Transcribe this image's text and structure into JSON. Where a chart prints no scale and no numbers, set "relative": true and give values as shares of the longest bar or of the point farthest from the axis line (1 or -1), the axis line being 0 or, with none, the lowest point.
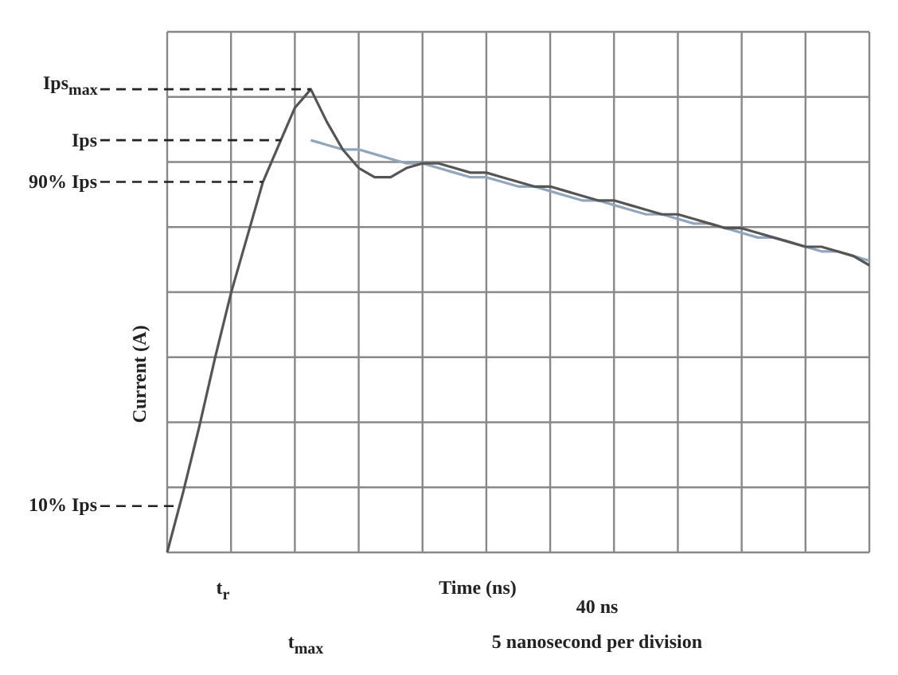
{
  "chart_data": {
    "type": "line",
    "relative": true,
    "grid": true,
    "legend": false,
    "marker": "none",
    "line_style": "solid",
    "ylabel": "Current (A)",
    "categories": [
      null,
      null,
      null,
      null,
      null,
      null,
      null,
      null,
      null,
      null,
      null,
      null,
      null,
      null,
      null,
      null,
      null,
      null,
      null,
      null,
      null,
      null,
      null,
      null,
      null,
      null,
      null,
      null,
      null,
      null,
      null,
      null,
      null,
      null,
      null,
      null,
      null,
      null,
      null,
      null,
      null,
      null,
      null,
      null,
      null
    ],
    "series": [
      {
        "color": "#555555",
        "values": [
          0,
          0.13,
          0.27,
          0.42,
          0.56,
          0.68,
          0.8,
          0.88,
          0.96,
          1.0,
          0.93,
          0.87,
          0.83,
          0.81,
          0.81,
          0.83,
          0.84,
          0.84,
          0.83,
          0.82,
          0.82,
          0.81,
          0.8,
          0.79,
          0.79,
          0.78,
          0.77,
          0.76,
          0.76,
          0.75,
          0.74,
          0.73,
          0.73,
          0.72,
          0.71,
          0.7,
          0.7,
          0.69,
          0.68,
          0.67,
          0.66,
          0.66,
          0.65,
          0.64,
          0.62
        ]
      },
      {
        "color": "#8fa6bd",
        "values": [
          null,
          null,
          null,
          null,
          null,
          null,
          null,
          null,
          null,
          0.89,
          0.88,
          0.87,
          0.87,
          0.86,
          0.85,
          0.84,
          0.84,
          0.83,
          0.82,
          0.81,
          0.81,
          0.8,
          0.79,
          0.79,
          0.78,
          0.77,
          0.76,
          0.76,
          0.75,
          0.74,
          0.73,
          0.73,
          0.72,
          0.71,
          0.71,
          0.7,
          0.69,
          0.68,
          0.68,
          0.67,
          0.66,
          0.65,
          0.65,
          0.64,
          0.63
        ]
      }
    ],
    "ref_lines": [
      {
        "axis": "y",
        "value": 1.0,
        "label": "Ips$_{max}$",
        "line_style": "dashed"
      },
      {
        "axis": "y",
        "value": 0.89,
        "label": "Ips",
        "line_style": "dashed"
      },
      {
        "axis": "y",
        "value": 0.8,
        "label": "90% Ips",
        "line_style": "dashed"
      },
      {
        "axis": "y",
        "value": 0.1,
        "label": "10% Ips",
        "line_style": "dashed"
      }
    ],
    "annotations": [
      "t$_{r}$",
      "t$_{max}$",
      "Time (ns)",
      "40 ns",
      "5 nanosecond per division"
    ]
  }
}
